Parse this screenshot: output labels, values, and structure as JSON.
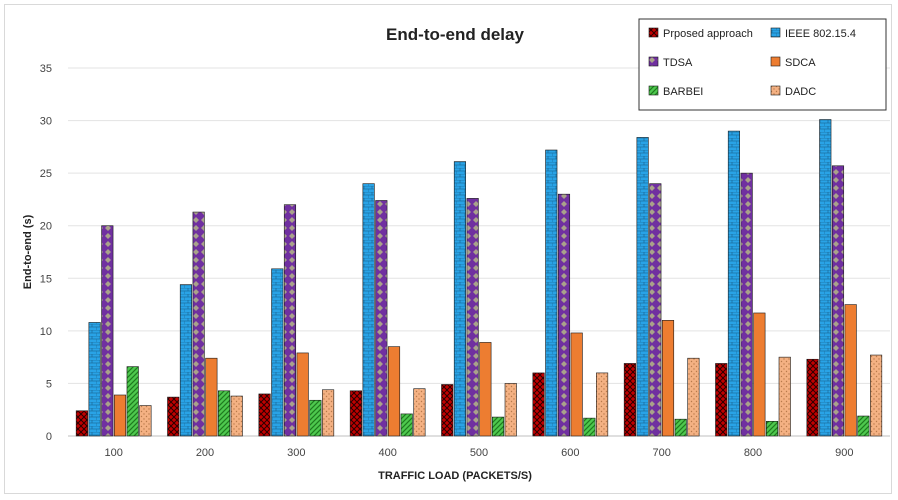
{
  "chart_data": {
    "type": "bar",
    "title": "End-to-end delay",
    "xlabel": "TRAFFIC LOAD (PACKETS/S)",
    "ylabel": "End-to-end (s)",
    "ylim": [
      0,
      35
    ],
    "yticks": [
      0,
      5,
      10,
      15,
      20,
      25,
      30,
      35
    ],
    "grid": true,
    "legend_position": "top-right",
    "categories": [
      "100",
      "200",
      "300",
      "400",
      "500",
      "600",
      "700",
      "800",
      "900"
    ],
    "series": [
      {
        "name": "Prposed approach",
        "color": "#c00000",
        "values": [
          2.4,
          3.7,
          4.0,
          4.3,
          4.9,
          6.0,
          6.9,
          6.9,
          7.3
        ]
      },
      {
        "name": "IEEE 802.15.4",
        "color": "#29a3e6",
        "values": [
          10.8,
          14.4,
          15.9,
          24.0,
          26.1,
          27.2,
          28.4,
          29.0,
          30.1
        ]
      },
      {
        "name": "TDSA",
        "color": "#7030a0",
        "values": [
          20.0,
          21.3,
          22.0,
          22.4,
          22.6,
          23.0,
          24.0,
          25.0,
          25.7
        ]
      },
      {
        "name": "SDCA",
        "color": "#ed7d31",
        "values": [
          3.9,
          7.4,
          7.9,
          8.5,
          8.9,
          9.8,
          11.0,
          11.7,
          12.5
        ]
      },
      {
        "name": "BARBEI",
        "color": "#4ec94e",
        "values": [
          6.6,
          4.3,
          3.4,
          2.1,
          1.8,
          1.7,
          1.6,
          1.4,
          1.9
        ]
      },
      {
        "name": "DADC",
        "color": "#f4b183",
        "values": [
          2.9,
          3.8,
          4.4,
          4.5,
          5.0,
          6.0,
          7.4,
          7.5,
          7.7
        ]
      }
    ]
  }
}
